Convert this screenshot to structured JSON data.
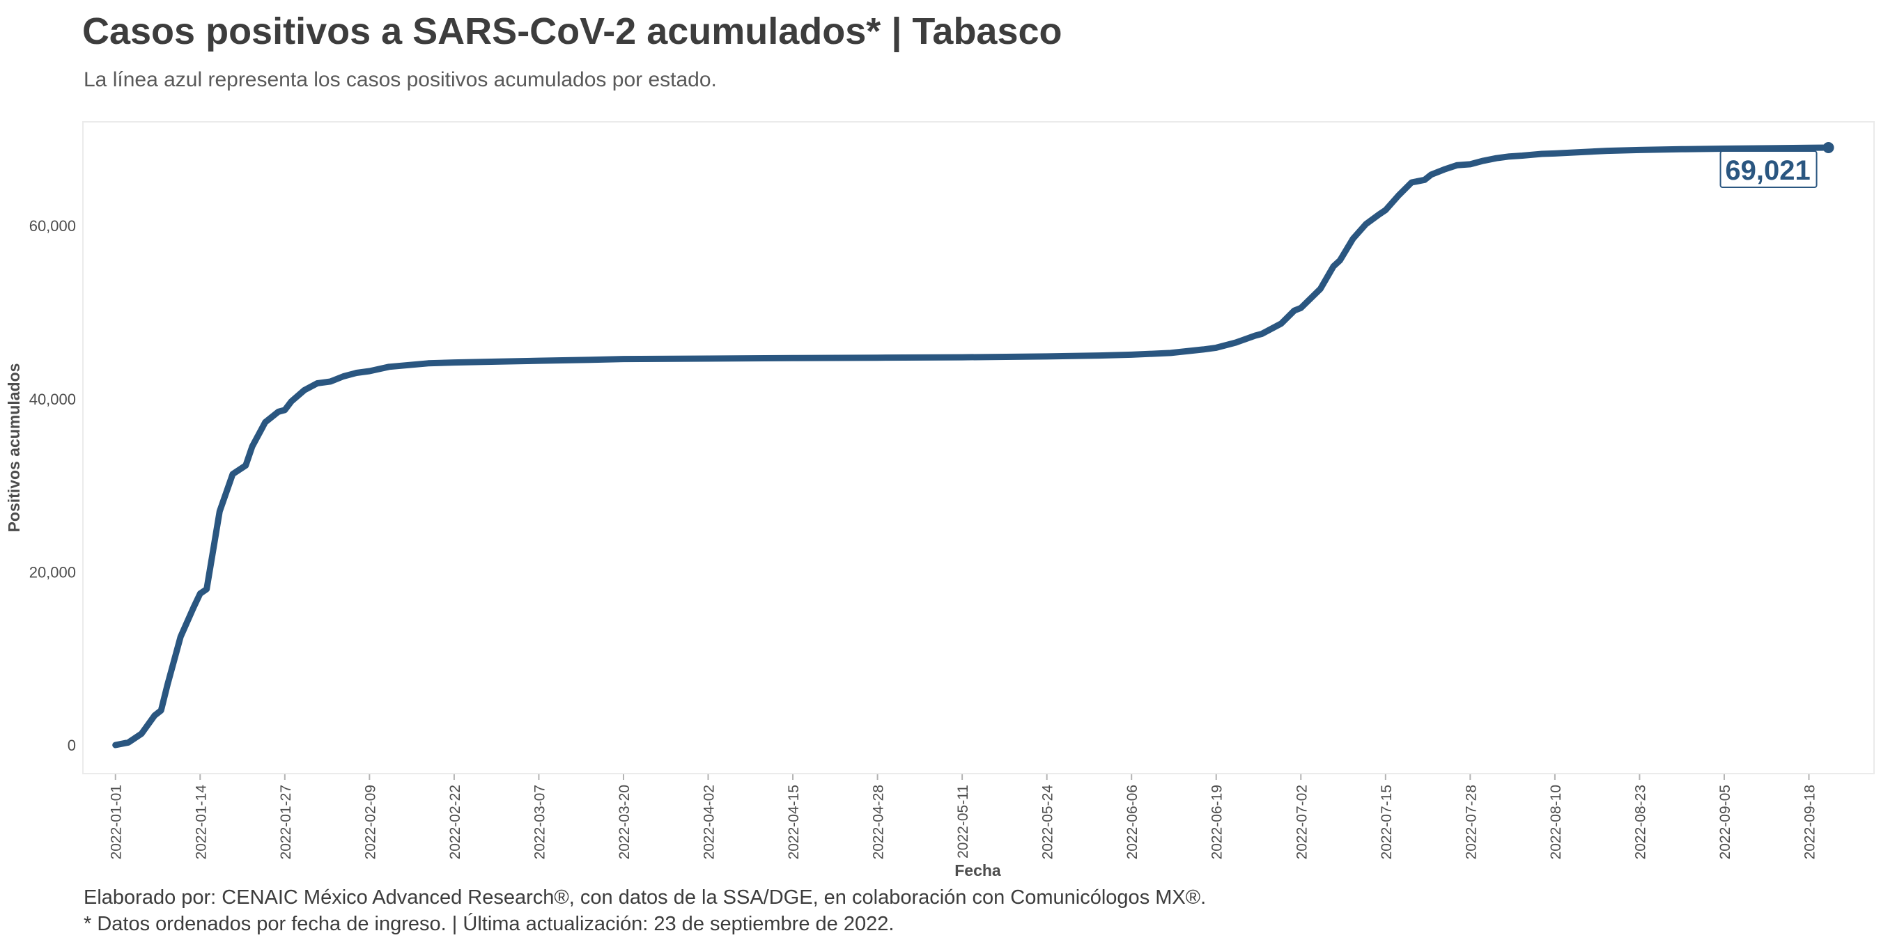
{
  "title": "Casos positivos a SARS-CoV-2 acumulados* | Tabasco",
  "subtitle": "La línea azul representa los casos positivos acumulados por estado.",
  "caption": {
    "line1": "Elaborado por: CENAIC México Advanced Research®, con datos de la SSA/DGE, en colaboración con Comunicólogos MX®.",
    "line2": "* Datos ordenados por fecha de ingreso. | Última actualización: 23 de septiembre de 2022."
  },
  "colors": {
    "line": "#2a5680",
    "panel_border": "#ebebeb",
    "tick": "#b3b3b3"
  },
  "chart_data": {
    "type": "line",
    "title": "Casos positivos a SARS-CoV-2 acumulados* | Tabasco",
    "xlabel": "Fecha",
    "ylabel": "Positivos acumulados",
    "x_type": "date",
    "xlim": [
      "2021-12-27",
      "2022-09-28"
    ],
    "ylim": [
      -3300,
      72000
    ],
    "grid": false,
    "legend": "none",
    "yticks": [
      0,
      20000,
      40000,
      60000
    ],
    "ytick_labels": [
      "0",
      "20,000",
      "40,000",
      "60,000"
    ],
    "xticks": [
      "2022-01-01",
      "2022-01-14",
      "2022-01-27",
      "2022-02-09",
      "2022-02-22",
      "2022-03-07",
      "2022-03-20",
      "2022-04-02",
      "2022-04-15",
      "2022-04-28",
      "2022-05-11",
      "2022-05-24",
      "2022-06-06",
      "2022-06-19",
      "2022-07-02",
      "2022-07-15",
      "2022-07-28",
      "2022-08-10",
      "2022-08-23",
      "2022-09-05",
      "2022-09-18"
    ],
    "end_label": "69,021",
    "series": [
      {
        "x": [
          "2022-01-01",
          "2022-01-03",
          "2022-01-05",
          "2022-01-07",
          "2022-01-08",
          "2022-01-09",
          "2022-01-11",
          "2022-01-13",
          "2022-01-14",
          "2022-01-15",
          "2022-01-17",
          "2022-01-19",
          "2022-01-21",
          "2022-01-22",
          "2022-01-24",
          "2022-01-26",
          "2022-01-27",
          "2022-01-28",
          "2022-01-30",
          "2022-02-01",
          "2022-02-03",
          "2022-02-05",
          "2022-02-07",
          "2022-02-09",
          "2022-02-12",
          "2022-02-15",
          "2022-02-18",
          "2022-02-22",
          "2022-03-01",
          "2022-03-07",
          "2022-03-15",
          "2022-03-20",
          "2022-04-02",
          "2022-04-15",
          "2022-04-28",
          "2022-05-11",
          "2022-05-24",
          "2022-06-01",
          "2022-06-06",
          "2022-06-12",
          "2022-06-17",
          "2022-06-19",
          "2022-06-22",
          "2022-06-25",
          "2022-06-26",
          "2022-06-29",
          "2022-07-01",
          "2022-07-02",
          "2022-07-05",
          "2022-07-07",
          "2022-07-08",
          "2022-07-10",
          "2022-07-12",
          "2022-07-14",
          "2022-07-15",
          "2022-07-17",
          "2022-07-19",
          "2022-07-21",
          "2022-07-22",
          "2022-07-24",
          "2022-07-26",
          "2022-07-28",
          "2022-07-30",
          "2022-08-01",
          "2022-08-03",
          "2022-08-05",
          "2022-08-08",
          "2022-08-10",
          "2022-08-14",
          "2022-08-18",
          "2022-08-23",
          "2022-08-30",
          "2022-09-05",
          "2022-09-12",
          "2022-09-18",
          "2022-09-21"
        ],
        "y": [
          0,
          300,
          1300,
          3400,
          4000,
          7000,
          12500,
          15900,
          17500,
          18000,
          27000,
          31300,
          32300,
          34500,
          37300,
          38500,
          38700,
          39700,
          41000,
          41800,
          42000,
          42600,
          43000,
          43200,
          43700,
          43900,
          44100,
          44200,
          44300,
          44400,
          44500,
          44600,
          44650,
          44700,
          44750,
          44800,
          44900,
          45000,
          45100,
          45300,
          45700,
          45900,
          46500,
          47300,
          47500,
          48700,
          50200,
          50500,
          52700,
          55300,
          56000,
          58500,
          60200,
          61300,
          61800,
          63500,
          65000,
          65300,
          65900,
          66500,
          67000,
          67100,
          67500,
          67800,
          68000,
          68100,
          68300,
          68350,
          68500,
          68650,
          68750,
          68850,
          68900,
          68950,
          69000,
          69021
        ]
      }
    ]
  }
}
